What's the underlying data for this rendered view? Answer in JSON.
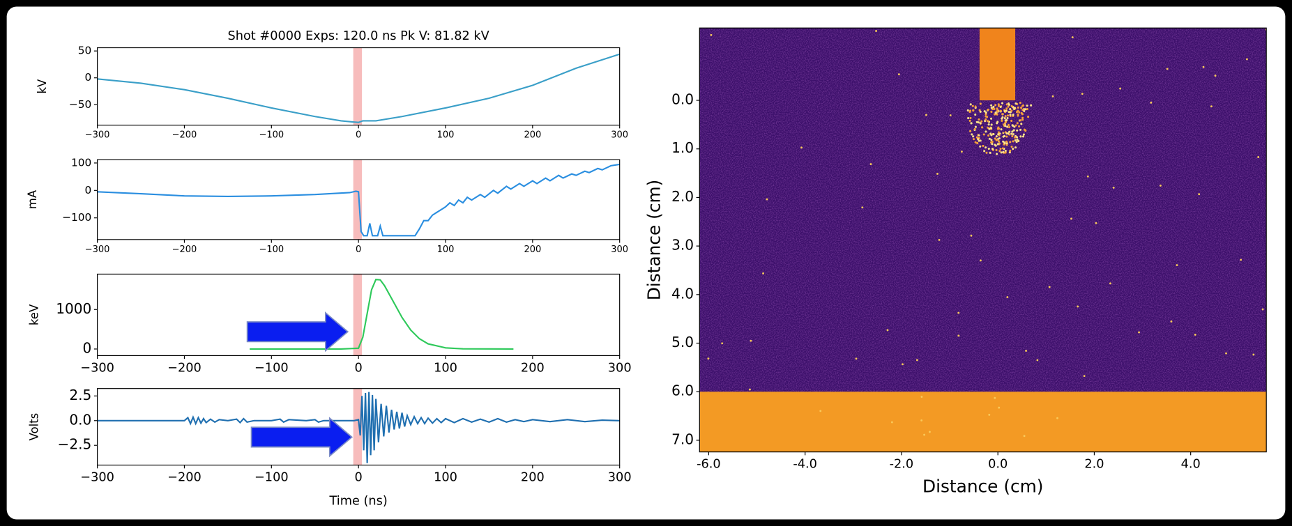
{
  "chart_data": [
    {
      "type": "line",
      "title": "Shot #0000 Exps: 120.0 ns Pk V: 81.82 kV",
      "ylabel": "kV",
      "color": "#3a9fc8",
      "x": [
        -300,
        -250,
        -200,
        -150,
        -100,
        -50,
        -20,
        0,
        5,
        20,
        50,
        100,
        150,
        200,
        250,
        300
      ],
      "values": [
        -2,
        -10,
        -22,
        -38,
        -56,
        -72,
        -80,
        -83,
        -80,
        -80,
        -72,
        -56,
        -38,
        -14,
        18,
        44
      ],
      "span": [
        -6,
        4
      ],
      "span_color": "#f7bcbc",
      "xlim": [
        -300,
        300
      ],
      "ylim": [
        -88,
        56
      ],
      "xticks": [
        {
          "value": -300,
          "label": "−300"
        },
        {
          "value": -200,
          "label": "−200"
        },
        {
          "value": -100,
          "label": "−100"
        },
        0,
        100,
        200,
        300
      ],
      "yticks": [
        {
          "value": -50,
          "label": "−50"
        },
        0,
        50
      ]
    },
    {
      "type": "line",
      "ylabel": "mA",
      "color": "#2a8ee0",
      "x": [
        -300,
        -250,
        -200,
        -150,
        -100,
        -50,
        -10,
        -3,
        0,
        3,
        6,
        10,
        13,
        16,
        22,
        25,
        28,
        65,
        70,
        75,
        80,
        85,
        90,
        95,
        100,
        105,
        110,
        115,
        120,
        125,
        130,
        140,
        145,
        155,
        160,
        170,
        175,
        185,
        190,
        200,
        205,
        215,
        220,
        230,
        235,
        245,
        250,
        260,
        265,
        275,
        280,
        290,
        300
      ],
      "values": [
        -5,
        -12,
        -20,
        -22,
        -20,
        -15,
        -8,
        -3,
        -5,
        -150,
        -165,
        -165,
        -120,
        -165,
        -165,
        -130,
        -165,
        -165,
        -140,
        -110,
        -110,
        -90,
        -80,
        -70,
        -60,
        -45,
        -55,
        -35,
        -45,
        -25,
        -35,
        -15,
        -25,
        0,
        -10,
        15,
        5,
        25,
        15,
        35,
        25,
        45,
        35,
        55,
        45,
        60,
        55,
        70,
        65,
        80,
        75,
        90,
        95
      ],
      "span": [
        -6,
        4
      ],
      "span_color": "#f7bcbc",
      "xlim": [
        -300,
        300
      ],
      "ylim": [
        -179,
        112
      ],
      "xticks": [
        {
          "value": -300,
          "label": "−300"
        },
        {
          "value": -200,
          "label": "−200"
        },
        {
          "value": -100,
          "label": "−100"
        },
        0,
        100,
        200,
        300
      ],
      "yticks": [
        {
          "value": -100,
          "label": "−100"
        },
        0,
        100
      ]
    },
    {
      "type": "line",
      "ylabel": "keV",
      "color": "#2ec95a",
      "x": [
        -125,
        -20,
        0,
        5,
        10,
        15,
        20,
        25,
        30,
        40,
        50,
        60,
        70,
        80,
        100,
        120,
        178
      ],
      "values": [
        0,
        0,
        20,
        300,
        900,
        1500,
        1760,
        1750,
        1600,
        1200,
        800,
        480,
        260,
        130,
        30,
        5,
        0
      ],
      "span": [
        -6,
        4
      ],
      "span_color": "#f7bcbc",
      "xlim": [
        -300,
        300
      ],
      "ylim": [
        -167,
        1896
      ],
      "xticks": [
        {
          "value": -300,
          "label": "−300"
        },
        {
          "value": -200,
          "label": "−200"
        },
        {
          "value": -100,
          "label": "−100"
        },
        0,
        100,
        200,
        300
      ],
      "yticks": [
        0,
        1000
      ]
    },
    {
      "type": "line",
      "ylabel": "Volts",
      "xlabel": "Time (ns)",
      "color": "#1f6fb0",
      "x": [
        -300,
        -200,
        -196,
        -193,
        -190,
        -187,
        -184,
        -181,
        -178,
        -175,
        -170,
        -165,
        -160,
        -150,
        -140,
        -136,
        -132,
        -128,
        -120,
        -100,
        -90,
        -86,
        -80,
        -60,
        -50,
        -46,
        -40,
        -5,
        0,
        2,
        4,
        6,
        8,
        10,
        12,
        14,
        16,
        18,
        20,
        23,
        26,
        29,
        32,
        35,
        38,
        41,
        44,
        47,
        50,
        53,
        56,
        60,
        64,
        68,
        72,
        76,
        80,
        85,
        90,
        95,
        100,
        110,
        120,
        130,
        140,
        150,
        160,
        170,
        180,
        190,
        200,
        220,
        240,
        260,
        280,
        300
      ],
      "values": [
        0,
        0,
        0.3,
        -0.3,
        0.35,
        -0.3,
        0.3,
        -0.25,
        0.2,
        -0.2,
        0.15,
        -0.15,
        0.1,
        0,
        0.15,
        -0.2,
        0.2,
        -0.15,
        0,
        0,
        0.15,
        -0.15,
        0.1,
        0,
        0.1,
        -0.15,
        0,
        0,
        0.1,
        -1.5,
        2.5,
        -3,
        2.8,
        -4.3,
        2.9,
        -3.5,
        2.6,
        -3,
        2.2,
        -2.2,
        1.7,
        -1.6,
        1.5,
        -1.2,
        1.1,
        -0.9,
        0.9,
        -0.8,
        0.8,
        -0.6,
        0.5,
        -0.4,
        0.4,
        -0.3,
        0.3,
        -0.3,
        0.25,
        -0.25,
        0.2,
        -0.2,
        0.2,
        -0.2,
        0.2,
        -0.15,
        0.15,
        -0.15,
        0.2,
        -0.15,
        0.1,
        -0.1,
        0.1,
        -0.1,
        0.1,
        -0.1,
        0.05,
        0
      ],
      "span": [
        -6,
        4
      ],
      "span_color": "#f7bcbc",
      "xlim": [
        -300,
        300
      ],
      "ylim": [
        -4.5,
        3.25
      ],
      "xticks": [
        {
          "value": -300,
          "label": "−300"
        },
        {
          "value": -200,
          "label": "−200"
        },
        {
          "value": -100,
          "label": "−100"
        },
        0,
        100,
        200,
        300
      ],
      "yticks": [
        {
          "value": -2.5,
          "label": "−2.5"
        },
        {
          "value": 0,
          "label": "0.0"
        },
        2.5
      ]
    },
    {
      "type": "image",
      "xlabel": "Distance (cm)",
      "ylabel": "Distance (cm)",
      "background": "#3b0f6a",
      "regions": [
        {
          "x": [
            -0.38,
            0.36
          ],
          "y": [
            -1.49,
            0.0
          ],
          "color": "#f0841c"
        },
        {
          "x": [
            -6.19,
            5.57
          ],
          "y": [
            6.0,
            7.24
          ],
          "color": "#f39a24"
        }
      ],
      "xlim": [
        -6.19,
        5.57
      ],
      "ylim": [
        7.24,
        -1.49
      ],
      "xticks": [
        {
          "value": -6,
          "label": "-6.0"
        },
        {
          "value": -4,
          "label": "-4.0"
        },
        {
          "value": -2,
          "label": "-2.0"
        },
        {
          "value": 0,
          "label": "0.0"
        },
        {
          "value": 2,
          "label": "2.0"
        },
        {
          "value": 4,
          "label": "4.0"
        }
      ],
      "yticks": [
        {
          "value": 0,
          "label": "0.0"
        },
        {
          "value": 1,
          "label": "1.0"
        },
        {
          "value": 2,
          "label": "2.0"
        },
        {
          "value": 3,
          "label": "3.0"
        },
        {
          "value": 4,
          "label": "4.0"
        },
        {
          "value": 5,
          "label": "5.0"
        },
        {
          "value": 6,
          "label": "6.0"
        },
        {
          "value": 7,
          "label": "7.0"
        }
      ]
    }
  ]
}
